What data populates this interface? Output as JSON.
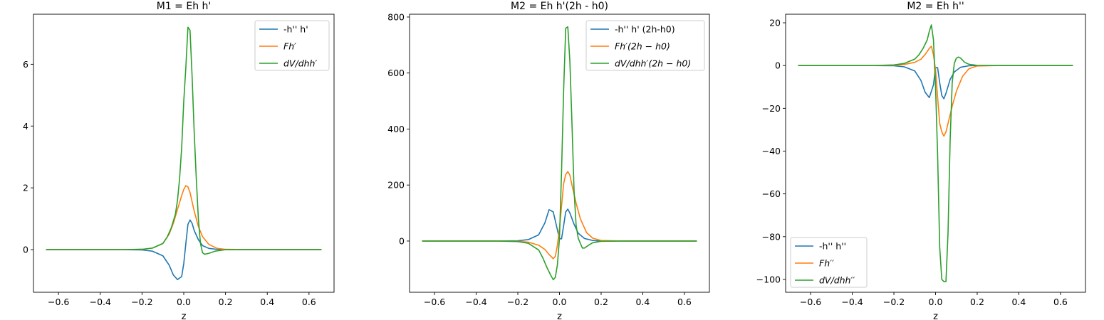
{
  "chart_data": [
    {
      "type": "line",
      "title": "M1 = Eh h'",
      "xlabel": "z",
      "xlim": [
        -0.72,
        0.72
      ],
      "ylim": [
        -1.38,
        7.62
      ],
      "xticks": [
        -0.6,
        -0.4,
        -0.2,
        0.0,
        0.2,
        0.4,
        0.6
      ],
      "xtick_labels": [
        "−0.6",
        "−0.4",
        "−0.2",
        "0.0",
        "0.2",
        "0.4",
        "0.6"
      ],
      "yticks": [
        0,
        2,
        4,
        6
      ],
      "ytick_labels": [
        "0",
        "2",
        "4",
        "6"
      ],
      "legend_loc": "upper-right",
      "series": [
        {
          "name": "-h'' h'",
          "color": "#1f77b4",
          "x": [
            -0.66,
            -0.3,
            -0.2,
            -0.15,
            -0.1,
            -0.07,
            -0.05,
            -0.03,
            -0.01,
            0.0,
            0.01,
            0.02,
            0.03,
            0.04,
            0.05,
            0.07,
            0.09,
            0.12,
            0.16,
            0.2,
            0.3,
            0.66
          ],
          "y": [
            0,
            0,
            -0.01,
            -0.05,
            -0.2,
            -0.5,
            -0.82,
            -0.97,
            -0.87,
            -0.45,
            0.2,
            0.82,
            0.96,
            0.85,
            0.62,
            0.32,
            0.13,
            0.04,
            0.01,
            0,
            0,
            0
          ]
        },
        {
          "name": "Fh′",
          "color": "#ff7f0e",
          "x": [
            -0.66,
            -0.3,
            -0.2,
            -0.15,
            -0.1,
            -0.07,
            -0.05,
            -0.03,
            -0.01,
            0.0,
            0.01,
            0.02,
            0.03,
            0.04,
            0.05,
            0.07,
            0.09,
            0.12,
            0.16,
            0.2,
            0.3,
            0.66
          ],
          "y": [
            0,
            0,
            0.01,
            0.05,
            0.2,
            0.5,
            0.85,
            1.3,
            1.75,
            1.95,
            2.07,
            2.03,
            1.85,
            1.55,
            1.25,
            0.75,
            0.42,
            0.17,
            0.04,
            0.01,
            0,
            0
          ]
        },
        {
          "name": "dV/dhh′",
          "color": "#2ca02c",
          "x": [
            -0.66,
            -0.3,
            -0.2,
            -0.15,
            -0.1,
            -0.08,
            -0.06,
            -0.04,
            -0.03,
            -0.02,
            -0.01,
            0.0,
            0.01,
            0.02,
            0.03,
            0.04,
            0.05,
            0.06,
            0.07,
            0.08,
            0.09,
            0.1,
            0.12,
            0.15,
            0.2,
            0.3,
            0.66
          ],
          "y": [
            0,
            0,
            0.01,
            0.05,
            0.2,
            0.4,
            0.7,
            1.15,
            1.6,
            2.3,
            3.3,
            4.8,
            5.9,
            7.2,
            7.1,
            5.6,
            3.8,
            2.3,
            1.0,
            0.2,
            -0.1,
            -0.15,
            -0.12,
            -0.05,
            0,
            0,
            0
          ]
        }
      ]
    },
    {
      "type": "line",
      "title": "M2 = Eh h'(2h - h0)",
      "xlabel": "z",
      "xlim": [
        -0.72,
        0.72
      ],
      "ylim": [
        -183,
        810
      ],
      "xticks": [
        -0.6,
        -0.4,
        -0.2,
        0.0,
        0.2,
        0.4,
        0.6
      ],
      "xtick_labels": [
        "−0.6",
        "−0.4",
        "−0.2",
        "0.0",
        "0.2",
        "0.4",
        "0.6"
      ],
      "yticks": [
        0,
        200,
        400,
        600,
        800
      ],
      "ytick_labels": [
        "0",
        "200",
        "400",
        "600",
        "800"
      ],
      "legend_loc": "upper-right",
      "series": [
        {
          "name": "-h'' h' (2h-h0)",
          "color": "#1f77b4",
          "x": [
            -0.66,
            -0.3,
            -0.2,
            -0.15,
            -0.1,
            -0.07,
            -0.05,
            -0.03,
            -0.01,
            0.0,
            0.01,
            0.02,
            0.03,
            0.04,
            0.05,
            0.07,
            0.09,
            0.12,
            0.16,
            0.2,
            0.3,
            0.66
          ],
          "y": [
            0,
            0,
            1,
            5,
            22,
            65,
            112,
            104,
            40,
            8,
            8,
            55,
            104,
            114,
            100,
            60,
            28,
            9,
            2,
            0,
            0,
            0
          ]
        },
        {
          "name": "Fh′(2h − h0)",
          "color": "#ff7f0e",
          "x": [
            -0.66,
            -0.3,
            -0.2,
            -0.15,
            -0.1,
            -0.07,
            -0.05,
            -0.03,
            -0.02,
            -0.01,
            0.0,
            0.01,
            0.02,
            0.03,
            0.04,
            0.05,
            0.06,
            0.08,
            0.1,
            0.13,
            0.16,
            0.2,
            0.3,
            0.66
          ],
          "y": [
            0,
            0,
            -1,
            -4,
            -15,
            -30,
            -48,
            -63,
            -55,
            -15,
            45,
            125,
            205,
            238,
            248,
            235,
            200,
            135,
            80,
            30,
            10,
            2,
            0,
            0
          ]
        },
        {
          "name": "dV/dhh′(2h − h0)",
          "color": "#2ca02c",
          "x": [
            -0.66,
            -0.3,
            -0.2,
            -0.15,
            -0.1,
            -0.08,
            -0.06,
            -0.04,
            -0.03,
            -0.02,
            -0.01,
            0.0,
            0.01,
            0.02,
            0.03,
            0.04,
            0.05,
            0.06,
            0.07,
            0.08,
            0.09,
            0.1,
            0.11,
            0.12,
            0.14,
            0.16,
            0.2,
            0.3,
            0.66
          ],
          "y": [
            0,
            0,
            -2,
            -8,
            -32,
            -60,
            -95,
            -125,
            -138,
            -130,
            -85,
            10,
            250,
            540,
            760,
            765,
            640,
            420,
            180,
            55,
            10,
            -8,
            -25,
            -25,
            -15,
            -6,
            -1,
            0,
            0
          ]
        }
      ]
    },
    {
      "type": "line",
      "title": "M2 = Eh h''",
      "xlabel": "z",
      "xlim": [
        -0.72,
        0.72
      ],
      "ylim": [
        -106,
        24
      ],
      "xticks": [
        -0.6,
        -0.4,
        -0.2,
        0.0,
        0.2,
        0.4,
        0.6
      ],
      "xtick_labels": [
        "−0.6",
        "−0.4",
        "−0.2",
        "0.0",
        "0.2",
        "0.4",
        "0.6"
      ],
      "yticks": [
        20,
        0,
        -20,
        -40,
        -60,
        -80,
        -100
      ],
      "ytick_labels": [
        "20",
        "0",
        "−20",
        "−40",
        "−60",
        "−80",
        "−100"
      ],
      "legend_loc": "lower-left",
      "series": [
        {
          "name": "-h'' h''",
          "color": "#1f77b4",
          "x": [
            -0.66,
            -0.3,
            -0.2,
            -0.15,
            -0.1,
            -0.07,
            -0.05,
            -0.03,
            -0.01,
            0.0,
            0.01,
            0.02,
            0.03,
            0.04,
            0.05,
            0.07,
            0.09,
            0.12,
            0.16,
            0.2,
            0.3,
            0.66
          ],
          "y": [
            0,
            0,
            -0.1,
            -0.6,
            -2.5,
            -7,
            -12.5,
            -15,
            -9,
            -1,
            -1,
            -8,
            -14,
            -15.5,
            -13,
            -6.5,
            -3,
            -0.8,
            -0.1,
            0,
            0,
            0
          ]
        },
        {
          "name": "Fh′′",
          "color": "#ff7f0e",
          "x": [
            -0.66,
            -0.3,
            -0.2,
            -0.15,
            -0.1,
            -0.07,
            -0.05,
            -0.03,
            -0.02,
            -0.01,
            0.0,
            0.01,
            0.02,
            0.03,
            0.04,
            0.05,
            0.06,
            0.08,
            0.1,
            0.13,
            0.16,
            0.2,
            0.3,
            0.66
          ],
          "y": [
            0,
            0,
            0.1,
            0.5,
            1.5,
            3,
            5.2,
            8,
            9,
            5,
            -2,
            -15,
            -27,
            -31,
            -33,
            -31,
            -27,
            -19,
            -12,
            -5,
            -1.5,
            -0.2,
            0,
            0
          ]
        },
        {
          "name": "dV/dhh′′",
          "color": "#2ca02c",
          "x": [
            -0.66,
            -0.3,
            -0.2,
            -0.15,
            -0.1,
            -0.08,
            -0.06,
            -0.04,
            -0.03,
            -0.02,
            -0.01,
            0.0,
            0.01,
            0.02,
            0.03,
            0.04,
            0.05,
            0.06,
            0.07,
            0.08,
            0.09,
            0.1,
            0.11,
            0.12,
            0.13,
            0.14,
            0.16,
            0.2,
            0.3,
            0.66
          ],
          "y": [
            0,
            0,
            0.3,
            1,
            3,
            5,
            8,
            12,
            16,
            19,
            12,
            -10,
            -42,
            -85,
            -100,
            -101,
            -101,
            -78,
            -35,
            -8,
            1,
            3.5,
            4,
            3.5,
            2.5,
            1.5,
            0.6,
            0.1,
            0,
            0
          ]
        }
      ]
    }
  ]
}
